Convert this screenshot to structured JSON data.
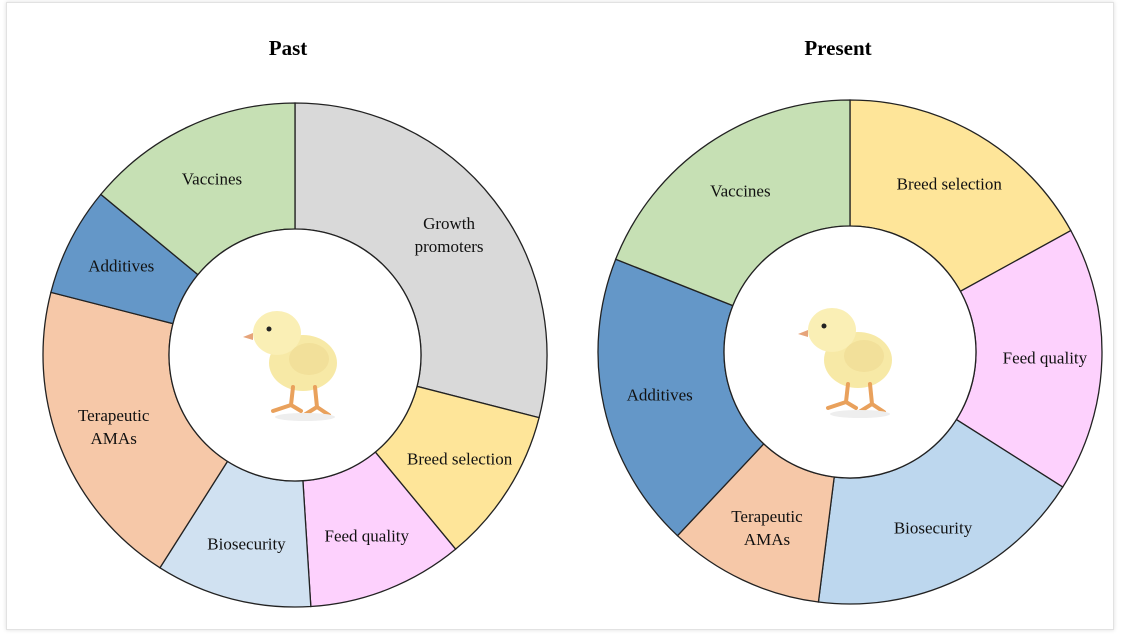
{
  "chart_data": [
    {
      "type": "donut",
      "title": "Past",
      "categories": [
        "Growth promoters",
        "Breed selection",
        "Feed quality",
        "Biosecurity",
        "Terapeutic AMAs",
        "Additives",
        "Vaccines"
      ],
      "values": [
        29,
        10,
        10,
        10,
        20,
        7,
        14
      ],
      "colors": [
        "#d9d9d9",
        "#fee599",
        "#fdd1fd",
        "#d0e1f1",
        "#f6c8a8",
        "#6497c8",
        "#c6e0b4"
      ]
    },
    {
      "type": "donut",
      "title": "Present",
      "categories": [
        "Breed selection",
        "Feed quality",
        "Biosecurity",
        "Terapeutic AMAs",
        "Additives",
        "Vaccines"
      ],
      "values": [
        17,
        17,
        18,
        10,
        19,
        19
      ],
      "colors": [
        "#fee599",
        "#fdd1fd",
        "#bdd7ee",
        "#f6c8a8",
        "#6497c8",
        "#c6e0b4"
      ]
    }
  ]
}
